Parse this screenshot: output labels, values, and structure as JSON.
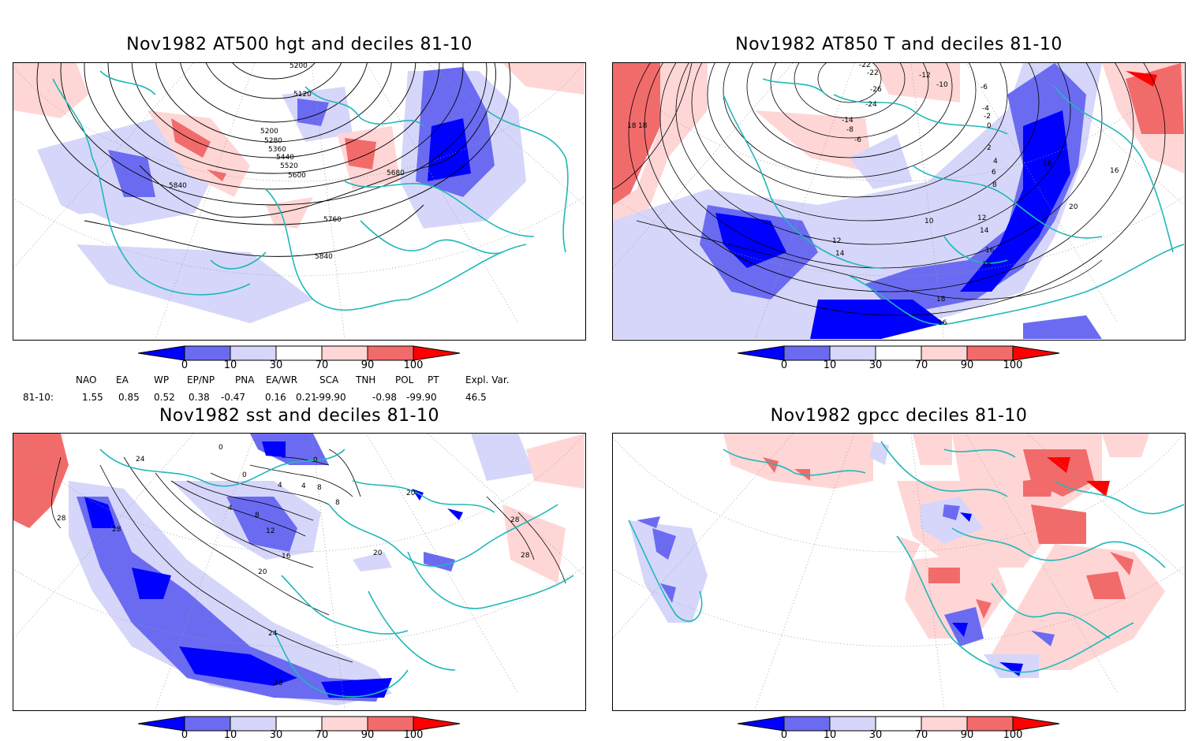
{
  "panels": [
    {
      "title": "Nov1982 AT500 hgt and deciles 81-10",
      "contour_labels": [
        "5200",
        "5120",
        "5200",
        "5280",
        "5360",
        "5440",
        "5520",
        "5600",
        "5680",
        "5760",
        "5840",
        "5840"
      ]
    },
    {
      "title": "Nov1982 AT850 T and deciles 81-10",
      "contour_labels": [
        "-22",
        "-22",
        "-26",
        "-12",
        "-10",
        "-6",
        "-24",
        "-14",
        "-8",
        "-6",
        "-4",
        "-2",
        "0",
        "2",
        "4",
        "6",
        "8",
        "10",
        "12",
        "12",
        "14",
        "14",
        "16",
        "16",
        "18",
        "18",
        "18",
        "20",
        "18",
        "16",
        "16"
      ]
    },
    {
      "title": "Nov1982 sst and deciles 81-10",
      "contour_labels": [
        "0",
        "0",
        "0",
        "4",
        "4",
        "8",
        "4",
        "8",
        "12",
        "16",
        "20",
        "20",
        "24",
        "28",
        "28",
        "24",
        "28",
        "28",
        "20",
        "28",
        "8"
      ]
    },
    {
      "title": "Nov1982 gpcc deciles 81-10",
      "contour_labels": []
    }
  ],
  "colorbar": {
    "ticks": [
      "0",
      "10",
      "30",
      "70",
      "90",
      "100"
    ],
    "colors": [
      "#0000ff",
      "#6b6bf2",
      "#d6d6fa",
      "#ffffff",
      "#ffd6d6",
      "#f26b6b",
      "#ff0000"
    ]
  },
  "indices": {
    "headers": [
      "NAO",
      "EA",
      "WP",
      "EP/NP",
      "PNA",
      "EA/WR",
      "SCA",
      "TNH",
      "POL",
      "PT",
      "Expl. Var."
    ],
    "row_label": "81-10:",
    "values": [
      "1.55",
      "0.85",
      "0.52",
      "0.38",
      "-0.47",
      "0.16",
      "0.21",
      "-99.90",
      "-0.98",
      "-99.90",
      "46.5"
    ]
  },
  "colors": {
    "coast": "#20b8b8",
    "contour": "#000000",
    "grid": "#999999"
  }
}
